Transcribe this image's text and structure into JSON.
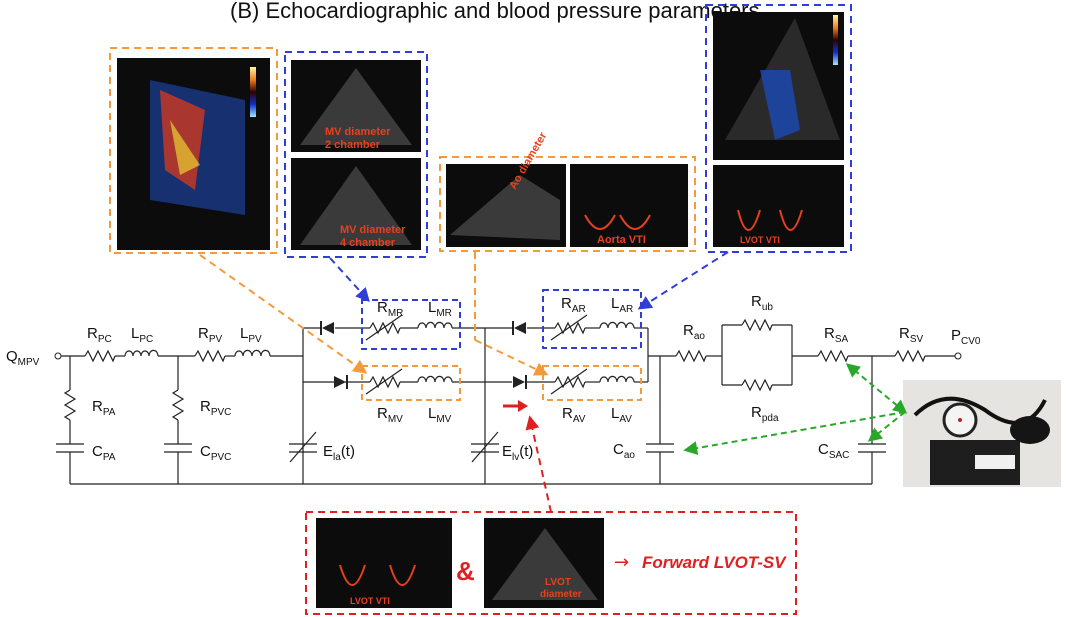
{
  "title": "(B) Echocardiographic and blood pressure parameters",
  "circuit": {
    "source": {
      "main": "Q",
      "sub": "MPV"
    },
    "sink": {
      "main": "P",
      "sub": "CV0"
    },
    "components": [
      {
        "main": "R",
        "sub": "PC"
      },
      {
        "main": "L",
        "sub": "PC"
      },
      {
        "main": "R",
        "sub": "PV"
      },
      {
        "main": "L",
        "sub": "PV"
      },
      {
        "main": "R",
        "sub": "PA"
      },
      {
        "main": "C",
        "sub": "PA"
      },
      {
        "main": "R",
        "sub": "PVC"
      },
      {
        "main": "C",
        "sub": "PVC"
      },
      {
        "main": "R",
        "sub": "MR"
      },
      {
        "main": "L",
        "sub": "MR"
      },
      {
        "main": "R",
        "sub": "MV"
      },
      {
        "main": "L",
        "sub": "MV"
      },
      {
        "main": "E",
        "sub": "la",
        "suffix": "(t)"
      },
      {
        "main": "R",
        "sub": "AR"
      },
      {
        "main": "L",
        "sub": "AR"
      },
      {
        "main": "R",
        "sub": "AV"
      },
      {
        "main": "L",
        "sub": "AV"
      },
      {
        "main": "E",
        "sub": "lv",
        "suffix": "(t)"
      },
      {
        "main": "R",
        "sub": "ao"
      },
      {
        "main": "R",
        "sub": "ub"
      },
      {
        "main": "R",
        "sub": "pda"
      },
      {
        "main": "C",
        "sub": "ao"
      },
      {
        "main": "R",
        "sub": "SA"
      },
      {
        "main": "R",
        "sub": "SV"
      },
      {
        "main": "C",
        "sub": "SAC"
      }
    ]
  },
  "echo_annotations": {
    "mv_2ch": [
      "MV diameter",
      "2 chamber"
    ],
    "mv_4ch": [
      "MV diameter",
      "4 chamber"
    ],
    "ao_diameter": "Ao diameter",
    "aorta_vti": "Aorta VTI",
    "lvot_vti": "LVOT VTI",
    "lvot_diameter": [
      "LVOT",
      "diameter"
    ],
    "ampersand": "&",
    "arrow_glyph": "→",
    "result": "Forward LVOT-SV"
  },
  "colors": {
    "orange": "#f59a3b",
    "blue": "#2f3ed6",
    "red": "#e02020",
    "green": "#28a828",
    "annotation": "#e8401e"
  }
}
